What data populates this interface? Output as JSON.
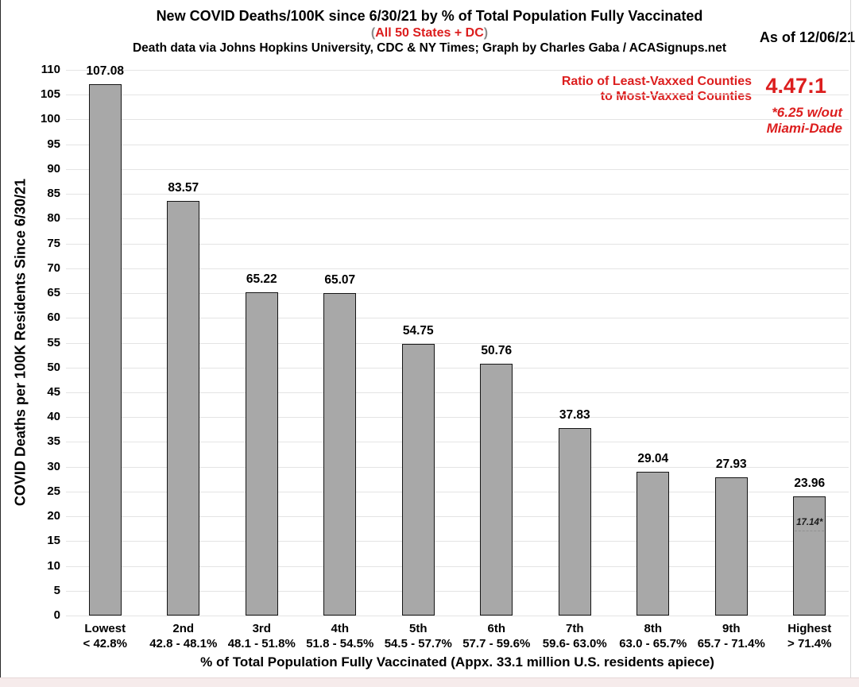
{
  "chart_data": {
    "type": "bar",
    "title": "New COVID Deaths/100K since 6/30/21 by % of Total Population Fully Vaccinated",
    "subtitle_prefix": "(",
    "subtitle": "All 50 States + DC",
    "subtitle_suffix": ")",
    "credit": "Death data via Johns Hopkins University, CDC & NY Times; Graph by Charles Gaba / ACASignups.net",
    "as_of": "As of 12/06/21",
    "annotation": {
      "label_line1": "Ratio of Least-Vaxxed Counties",
      "label_line2": "to Most-Vaxxed Counties",
      "ratio": "4.47:1",
      "note_line1": "*6.25 w/out",
      "note_line2": "Miami-Dade"
    },
    "xlabel": "% of Total Population Fully Vaccinated (Appx. 33.1 million U.S. residents apiece)",
    "ylabel": "COVID Deaths per 100K Residents Since 6/30/21",
    "ylim": [
      0,
      110
    ],
    "ytick_step": 5,
    "grid": true,
    "legend": false,
    "categories": [
      {
        "ordinal": "Lowest",
        "range": "< 42.8%"
      },
      {
        "ordinal": "2nd",
        "range": "42.8 - 48.1%"
      },
      {
        "ordinal": "3rd",
        "range": "48.1 - 51.8%"
      },
      {
        "ordinal": "4th",
        "range": "51.8 - 54.5%"
      },
      {
        "ordinal": "5th",
        "range": "54.5 - 57.7%"
      },
      {
        "ordinal": "6th",
        "range": "57.7 - 59.6%"
      },
      {
        "ordinal": "7th",
        "range": "59.6- 63.0%"
      },
      {
        "ordinal": "8th",
        "range": "63.0 - 65.7%"
      },
      {
        "ordinal": "9th",
        "range": "65.7 - 71.4%"
      },
      {
        "ordinal": "Highest",
        "range": "> 71.4%"
      }
    ],
    "values": [
      107.08,
      83.57,
      65.22,
      65.07,
      54.75,
      50.76,
      37.83,
      29.04,
      27.93,
      23.96
    ],
    "last_bar_note": {
      "label": "17.14*",
      "value": 17.14
    },
    "colors": {
      "red": "#dc1e1e",
      "paren_gray": "#8c8c8c",
      "bar_fill": "#a8a8a8",
      "bar_border": "#151515",
      "grid": "#e4e4e4"
    }
  }
}
